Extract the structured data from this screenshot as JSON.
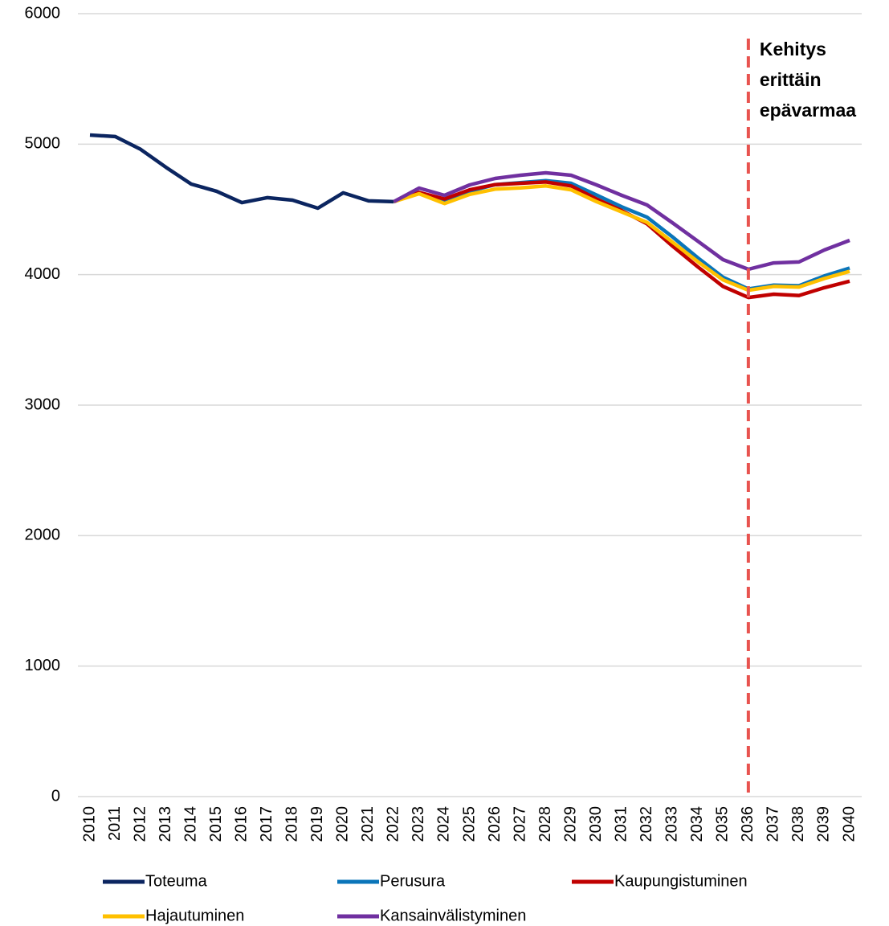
{
  "chart_data": {
    "type": "line",
    "categories": [
      "2010",
      "2011",
      "2012",
      "2013",
      "2014",
      "2015",
      "2016",
      "2017",
      "2018",
      "2019",
      "2020",
      "2021",
      "2022",
      "2023",
      "2024",
      "2025",
      "2026",
      "2027",
      "2028",
      "2029",
      "2030",
      "2031",
      "2032",
      "2033",
      "2034",
      "2035",
      "2036",
      "2037",
      "2038",
      "2039",
      "2040"
    ],
    "series": [
      {
        "name": "Toteuma",
        "color": "#0b2560",
        "values": [
          5070,
          5058,
          4960,
          4823,
          4694,
          4639,
          4552,
          4590,
          4571,
          4509,
          4627,
          4565,
          4559,
          null,
          null,
          null,
          null,
          null,
          null,
          null,
          null,
          null,
          null,
          null,
          null,
          null,
          null,
          null,
          null,
          null,
          null
        ]
      },
      {
        "name": "Perusura",
        "color": "#0a75b9",
        "values": [
          null,
          null,
          null,
          null,
          null,
          null,
          null,
          null,
          null,
          null,
          null,
          null,
          4559,
          4630,
          4570,
          4640,
          4690,
          4705,
          4720,
          4700,
          4610,
          4520,
          4440,
          4290,
          4130,
          3980,
          3890,
          3920,
          3915,
          3990,
          4050
        ]
      },
      {
        "name": "Kaupungistuminen",
        "color": "#c00000",
        "values": [
          null,
          null,
          null,
          null,
          null,
          null,
          null,
          null,
          null,
          null,
          null,
          null,
          4559,
          4630,
          4580,
          4650,
          4690,
          4700,
          4710,
          4680,
          4580,
          4490,
          4390,
          4220,
          4060,
          3910,
          3825,
          3850,
          3840,
          3900,
          3950
        ]
      },
      {
        "name": "Hajautuminen",
        "color": "#ffc000",
        "values": [
          null,
          null,
          null,
          null,
          null,
          null,
          null,
          null,
          null,
          null,
          null,
          null,
          4559,
          4620,
          4545,
          4615,
          4655,
          4665,
          4680,
          4650,
          4560,
          4480,
          4400,
          4250,
          4100,
          3960,
          3880,
          3910,
          3905,
          3970,
          4025
        ]
      },
      {
        "name": "Kansainvälistyminen",
        "color": "#7030a0",
        "values": [
          null,
          null,
          null,
          null,
          null,
          null,
          null,
          null,
          null,
          null,
          null,
          null,
          4559,
          4663,
          4608,
          4688,
          4737,
          4762,
          4780,
          4762,
          4688,
          4608,
          4534,
          4398,
          4257,
          4115,
          4041,
          4090,
          4097,
          4189,
          4263
        ]
      }
    ],
    "ylim": [
      0,
      6000
    ],
    "yticks": [
      0,
      1000,
      2000,
      3000,
      4000,
      5000,
      6000
    ],
    "grid": true,
    "annotation": {
      "lines": [
        "Kehitys",
        "erittäin",
        "epävarmaa"
      ],
      "at": "2036",
      "color": "#e8534f"
    },
    "legend": "bottom"
  }
}
